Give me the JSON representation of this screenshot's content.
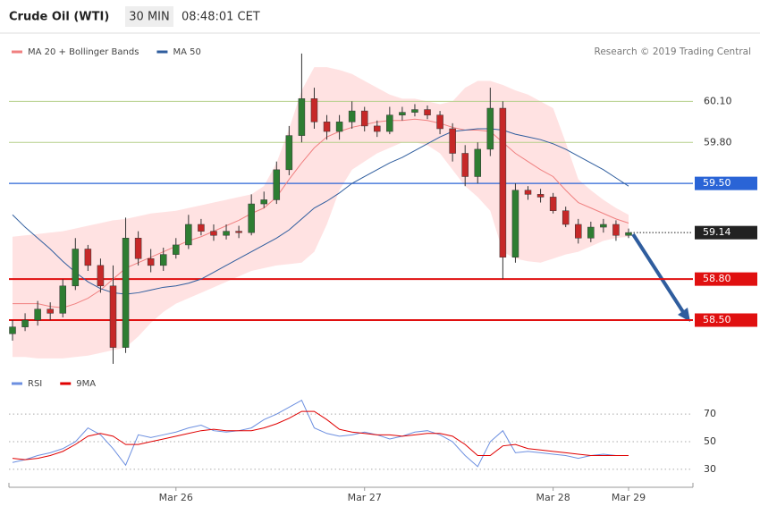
{
  "header": {
    "title": "Crude Oil (WTI)",
    "timeframe": "30 MIN",
    "time": "08:48:01 CET"
  },
  "credit": "Research © 2019 Trading Central",
  "chart_data": [
    {
      "type": "candlestick",
      "ylim": [
        58.16,
        60.58
      ],
      "yticks": [
        {
          "value": 60.1,
          "label": "60.10"
        },
        {
          "value": 59.8,
          "label": "59.80"
        }
      ],
      "grid_color": "#b5cf8a",
      "up_color": "#2e7d32",
      "down_color": "#c62828",
      "levels": [
        {
          "value": 59.5,
          "label": "59.50",
          "color": "#2a64d6",
          "style": "solid"
        },
        {
          "value": 59.14,
          "label": "59.14",
          "color": "#222222",
          "style": "dotted"
        },
        {
          "value": 58.8,
          "label": "58.80",
          "color": "#e01010",
          "style": "solid"
        },
        {
          "value": 58.5,
          "label": "58.50",
          "color": "#e01010",
          "style": "solid"
        }
      ],
      "ohlc": {
        "open": [
          58.4,
          58.45,
          58.5,
          58.58,
          58.55,
          58.75,
          59.02,
          58.9,
          58.75,
          58.3,
          59.1,
          58.95,
          58.9,
          58.98,
          59.05,
          59.2,
          59.15,
          59.12,
          59.15,
          59.14,
          59.35,
          59.38,
          59.6,
          59.85,
          60.12,
          59.95,
          59.88,
          59.95,
          60.03,
          59.92,
          59.88,
          60.0,
          60.02,
          60.04,
          60.0,
          59.9,
          59.72,
          59.55,
          59.75,
          60.05,
          58.96,
          59.45,
          59.42,
          59.4,
          59.3,
          59.2,
          59.1,
          59.18,
          59.2,
          59.12
        ],
        "high": [
          58.5,
          58.55,
          58.64,
          58.63,
          58.8,
          59.1,
          59.05,
          58.95,
          58.9,
          59.25,
          59.15,
          59.02,
          59.03,
          59.1,
          59.27,
          59.24,
          59.2,
          59.2,
          59.19,
          59.42,
          59.44,
          59.66,
          59.92,
          60.45,
          60.2,
          60.0,
          60.0,
          60.1,
          60.06,
          59.96,
          60.06,
          60.06,
          60.08,
          60.07,
          60.03,
          59.94,
          59.78,
          59.8,
          60.2,
          60.1,
          59.5,
          59.48,
          59.46,
          59.43,
          59.33,
          59.24,
          59.22,
          59.24,
          59.23,
          59.17
        ],
        "low": [
          58.35,
          58.42,
          58.46,
          58.5,
          58.52,
          58.72,
          58.86,
          58.7,
          58.18,
          58.26,
          58.9,
          58.85,
          58.86,
          58.95,
          59.02,
          59.12,
          59.08,
          59.09,
          59.1,
          59.12,
          59.32,
          59.35,
          59.56,
          59.8,
          59.9,
          59.82,
          59.82,
          59.9,
          59.88,
          59.84,
          59.86,
          59.96,
          59.99,
          59.97,
          59.86,
          59.66,
          59.48,
          59.5,
          59.7,
          58.8,
          58.92,
          59.38,
          59.36,
          59.28,
          59.18,
          59.06,
          59.07,
          59.14,
          59.08,
          59.1
        ],
        "close": [
          58.45,
          58.5,
          58.58,
          58.55,
          58.75,
          59.02,
          58.9,
          58.75,
          58.3,
          59.1,
          58.95,
          58.9,
          58.98,
          59.05,
          59.2,
          59.15,
          59.12,
          59.15,
          59.14,
          59.35,
          59.38,
          59.6,
          59.85,
          60.12,
          59.95,
          59.88,
          59.95,
          60.03,
          59.92,
          59.88,
          60.0,
          60.02,
          60.04,
          60.0,
          59.9,
          59.72,
          59.55,
          59.75,
          60.05,
          58.96,
          59.45,
          59.42,
          59.4,
          59.3,
          59.2,
          59.1,
          59.18,
          59.2,
          59.12,
          59.14
        ]
      },
      "series": [
        {
          "name": "MA 20 + Bollinger Bands",
          "color": "#f08080",
          "band_color": "#ffd6d6",
          "values": [
            58.62,
            58.62,
            58.62,
            58.6,
            58.59,
            58.62,
            58.66,
            58.72,
            58.8,
            58.88,
            58.92,
            58.96,
            59.0,
            59.04,
            59.08,
            59.11,
            59.15,
            59.19,
            59.23,
            59.28,
            59.32,
            59.4,
            59.53,
            59.65,
            59.76,
            59.84,
            59.88,
            59.91,
            59.93,
            59.95,
            59.96,
            59.96,
            59.97,
            59.96,
            59.94,
            59.91,
            59.89,
            59.89,
            59.88,
            59.8,
            59.72,
            59.66,
            59.6,
            59.55,
            59.45,
            59.36,
            59.32,
            59.28,
            59.24,
            59.21
          ],
          "upper": [
            59.11,
            59.12,
            59.13,
            59.14,
            59.15,
            59.17,
            59.19,
            59.21,
            59.23,
            59.24,
            59.26,
            59.28,
            59.29,
            59.3,
            59.32,
            59.34,
            59.36,
            59.38,
            59.4,
            59.42,
            59.48,
            59.65,
            59.9,
            60.18,
            60.35,
            60.35,
            60.33,
            60.3,
            60.25,
            60.2,
            60.15,
            60.12,
            60.12,
            60.1,
            60.08,
            60.1,
            60.2,
            60.25,
            60.25,
            60.22,
            60.18,
            60.15,
            60.1,
            60.05,
            59.8,
            59.53,
            59.45,
            59.38,
            59.32,
            59.27
          ],
          "lower": [
            58.23,
            58.23,
            58.22,
            58.22,
            58.22,
            58.23,
            58.24,
            58.26,
            58.28,
            58.3,
            58.38,
            58.48,
            58.56,
            58.62,
            58.66,
            58.7,
            58.74,
            58.78,
            58.82,
            58.86,
            58.88,
            58.9,
            58.91,
            58.92,
            59.0,
            59.2,
            59.45,
            59.6,
            59.66,
            59.72,
            59.76,
            59.8,
            59.8,
            59.78,
            59.72,
            59.6,
            59.48,
            59.4,
            59.3,
            59.0,
            58.95,
            58.93,
            58.92,
            58.95,
            58.98,
            59.0,
            59.04,
            59.08,
            59.1,
            59.11
          ]
        },
        {
          "name": "MA 50",
          "color": "#2f5d9e",
          "values": [
            59.27,
            59.18,
            59.1,
            59.02,
            58.93,
            58.85,
            58.78,
            58.73,
            58.7,
            58.69,
            58.7,
            58.72,
            58.74,
            58.75,
            58.77,
            58.8,
            58.85,
            58.9,
            58.95,
            59.0,
            59.05,
            59.1,
            59.16,
            59.24,
            59.32,
            59.37,
            59.43,
            59.5,
            59.55,
            59.6,
            59.65,
            59.69,
            59.74,
            59.79,
            59.84,
            59.88,
            59.89,
            59.9,
            59.9,
            59.89,
            59.86,
            59.84,
            59.82,
            59.79,
            59.75,
            59.7,
            59.65,
            59.6,
            59.54,
            59.48
          ]
        }
      ]
    },
    {
      "type": "line",
      "ylim": [
        17,
        85
      ],
      "yticks": [
        30,
        50,
        70
      ],
      "categories": [
        null,
        null,
        null,
        null,
        null,
        null,
        null,
        null,
        null,
        null,
        null,
        null,
        null,
        "Mar 26",
        null,
        null,
        null,
        null,
        null,
        null,
        null,
        null,
        null,
        null,
        null,
        null,
        null,
        null,
        "Mar 27",
        null,
        null,
        null,
        null,
        null,
        null,
        null,
        null,
        null,
        null,
        null,
        null,
        null,
        null,
        "Mar 28",
        null,
        null,
        null,
        null,
        null,
        "Mar 29"
      ],
      "series": [
        {
          "name": "RSI",
          "color": "#6c8fe0",
          "values": [
            35,
            37,
            40,
            42,
            45,
            50,
            60,
            55,
            45,
            33,
            55,
            53,
            55,
            57,
            60,
            62,
            58,
            57,
            58,
            60,
            66,
            70,
            75,
            80,
            60,
            56,
            54,
            55,
            57,
            55,
            52,
            54,
            57,
            58,
            55,
            50,
            40,
            32,
            50,
            58,
            42,
            43,
            42,
            41,
            40,
            38,
            40,
            41,
            40,
            40
          ]
        },
        {
          "name": "9MA",
          "color": "#e00000",
          "values": [
            38,
            37,
            38,
            40,
            43,
            48,
            54,
            56,
            54,
            48,
            48,
            50,
            52,
            54,
            56,
            58,
            59,
            58,
            58,
            58,
            60,
            63,
            67,
            72,
            72,
            66,
            59,
            57,
            56,
            55,
            55,
            54,
            55,
            56,
            56,
            54,
            48,
            40,
            40,
            47,
            48,
            45,
            44,
            43,
            42,
            41,
            40,
            40,
            40,
            40
          ]
        }
      ]
    }
  ]
}
